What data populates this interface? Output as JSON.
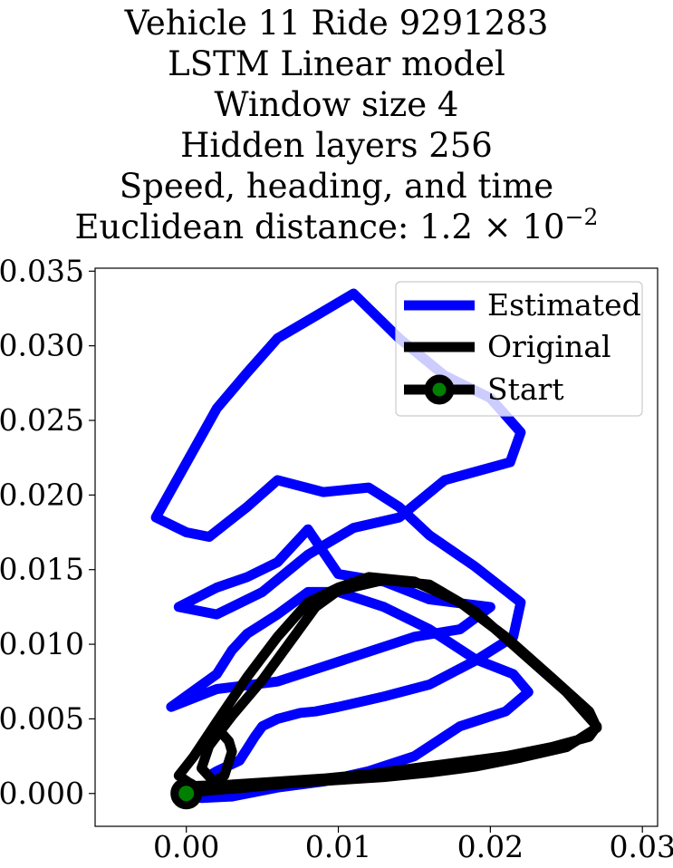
{
  "title": {
    "line1": "Vehicle 11 Ride 9291283",
    "line2": "LSTM Linear model",
    "line3": "Window size 4",
    "line4": "Hidden layers 256",
    "line5": "Speed, heading, and time",
    "line6_prefix": "Euclidean distance: 1.2 × 10",
    "line6_exponent": "−2"
  },
  "colors": {
    "estimated": "#0000ff",
    "original": "#000000",
    "start_marker_edge": "#000000",
    "start_marker_fill": "#008000",
    "axes": "#000000",
    "background": "#ffffff"
  },
  "chart_data": {
    "type": "line",
    "title": "Vehicle 11 Ride 9291283 / LSTM Linear model / Window size 4 / Hidden layers 256 / Speed, heading, and time / Euclidean distance: 1.2 × 10^−2",
    "xlabel": "",
    "ylabel": "",
    "xlim": [
      -0.006,
      0.031
    ],
    "ylim": [
      -0.0022,
      0.0352
    ],
    "x_ticks": [
      0.0,
      0.01,
      0.02,
      0.03
    ],
    "x_tick_labels": [
      "0.00",
      "0.01",
      "0.02",
      "0.03"
    ],
    "y_ticks": [
      0.0,
      0.005,
      0.01,
      0.015,
      0.02,
      0.025,
      0.03,
      0.035
    ],
    "y_tick_labels": [
      "0.000",
      "0.005",
      "0.010",
      "0.015",
      "0.020",
      "0.025",
      "0.030",
      "0.035"
    ],
    "grid": false,
    "legend": {
      "placement": "top-right",
      "entries": [
        "Estimated",
        "Original",
        "Start"
      ]
    },
    "series": [
      {
        "name": "Estimated",
        "color": "#0000ff",
        "x": [
          0.0,
          0.001,
          0.003,
          0.006,
          0.009,
          0.012,
          0.015,
          0.018,
          0.021,
          0.0225,
          0.0215,
          0.019,
          0.016,
          0.013,
          0.01,
          0.008,
          0.006,
          0.004,
          0.003,
          0.002,
          -0.001,
          0.002,
          0.006,
          0.009,
          0.012,
          0.015,
          0.018,
          0.02,
          0.02,
          0.016,
          0.013,
          0.01,
          0.008,
          0.006,
          0.004,
          0.002,
          -0.0005,
          0.002,
          0.005,
          0.008,
          0.011,
          0.014,
          0.017,
          0.0213,
          0.022,
          0.02,
          0.017,
          0.014,
          0.011,
          0.0085,
          0.006,
          0.004,
          0.002,
          -0.002,
          0.0,
          0.0015,
          0.004,
          0.006,
          0.009,
          0.012,
          0.014,
          0.016,
          0.019,
          0.022,
          0.0215,
          0.019,
          0.016,
          0.013,
          0.01,
          0.0085,
          0.0075,
          0.006,
          0.005,
          0.0045,
          0.004,
          0.0035,
          0.002,
          0.0015,
          0.0025
        ],
        "y": [
          -0.0001,
          -0.0003,
          -0.0002,
          0.0004,
          0.0008,
          0.0015,
          0.0025,
          0.0045,
          0.0055,
          0.0068,
          0.008,
          0.009,
          0.011,
          0.0125,
          0.0135,
          0.0135,
          0.012,
          0.0107,
          0.0096,
          0.008,
          0.0058,
          0.007,
          0.0075,
          0.0085,
          0.0095,
          0.0105,
          0.011,
          0.0125,
          0.0125,
          0.013,
          0.0142,
          0.0147,
          0.0177,
          0.0155,
          0.0145,
          0.0138,
          0.0125,
          0.012,
          0.0135,
          0.016,
          0.0178,
          0.0185,
          0.021,
          0.0222,
          0.0242,
          0.0265,
          0.028,
          0.0305,
          0.0335,
          0.032,
          0.0305,
          0.0282,
          0.0258,
          0.0185,
          0.0175,
          0.0172,
          0.0192,
          0.021,
          0.0202,
          0.0205,
          0.0192,
          0.0173,
          0.0152,
          0.0128,
          0.0105,
          0.0089,
          0.0073,
          0.0065,
          0.0058,
          0.0055,
          0.0054,
          0.005,
          0.0045,
          0.0038,
          0.003,
          0.0022,
          0.0015,
          0.0012,
          0.0005
        ]
      },
      {
        "name": "Original",
        "color": "#000000",
        "x": [
          0.0,
          0.0015,
          0.004,
          0.007,
          0.01,
          0.013,
          0.016,
          0.019,
          0.022,
          0.025,
          0.027,
          0.0265,
          0.024,
          0.021,
          0.018,
          0.015,
          0.012,
          0.01,
          0.008,
          0.006,
          0.004,
          0.002,
          0.0005,
          -0.0005,
          0.0005,
          0.003,
          0.006,
          0.009,
          0.012,
          0.015,
          0.018,
          0.021,
          0.024,
          0.0265,
          0.027,
          0.025,
          0.022,
          0.019,
          0.016,
          0.013,
          0.01,
          0.0085,
          0.007,
          0.005,
          0.003,
          0.0015,
          0.001,
          0.0018,
          0.0025,
          0.003,
          0.0028,
          0.0022,
          0.002
        ],
        "y": [
          0.0,
          0.0002,
          0.0004,
          0.0007,
          0.0009,
          0.0011,
          0.0014,
          0.0018,
          0.0024,
          0.0031,
          0.0044,
          0.0055,
          0.0078,
          0.0105,
          0.0128,
          0.0142,
          0.0145,
          0.0138,
          0.0128,
          0.0105,
          0.0078,
          0.0048,
          0.0025,
          0.0012,
          0.0005,
          0.0006,
          0.0008,
          0.001,
          0.0013,
          0.0017,
          0.0021,
          0.0025,
          0.0031,
          0.0038,
          0.0045,
          0.0068,
          0.0095,
          0.0122,
          0.014,
          0.0143,
          0.0136,
          0.0125,
          0.0104,
          0.0076,
          0.0052,
          0.0032,
          0.0017,
          0.0008,
          0.0012,
          0.0028,
          0.0035,
          0.0042,
          0.0044
        ]
      }
    ],
    "start": {
      "name": "Start",
      "x": 0.0,
      "y": 0.0
    }
  }
}
